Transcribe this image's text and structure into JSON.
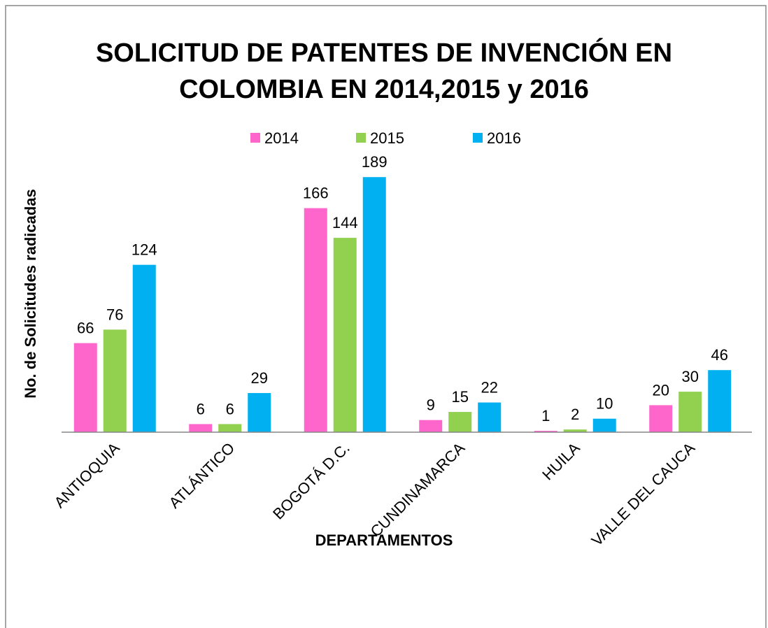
{
  "chart_data": {
    "type": "bar",
    "title": [
      "SOLICITUD DE PATENTES DE INVENCIÓN  EN",
      "COLOMBIA EN 2014,2015 y 2016"
    ],
    "x_label": "DEPARTAMENTOS",
    "y_label": "No. de  Solicitudes radicadas",
    "categories": [
      "ANTIOQUIA",
      "ATLÁNTICO",
      "BOGOTÁ D.C.",
      "CUNDINAMARCA",
      "HUILA",
      "VALLE DEL CAUCA"
    ],
    "series": [
      {
        "name": "2014",
        "color": "#ff66cc",
        "values": [
          66,
          6,
          166,
          9,
          1,
          20
        ]
      },
      {
        "name": "2015",
        "color": "#92d050",
        "values": [
          76,
          6,
          144,
          15,
          2,
          30
        ]
      },
      {
        "name": "2016",
        "color": "#00b0f0",
        "values": [
          124,
          29,
          189,
          22,
          10,
          46
        ]
      }
    ],
    "ylim": [
      0,
      200
    ],
    "legend": "top"
  }
}
